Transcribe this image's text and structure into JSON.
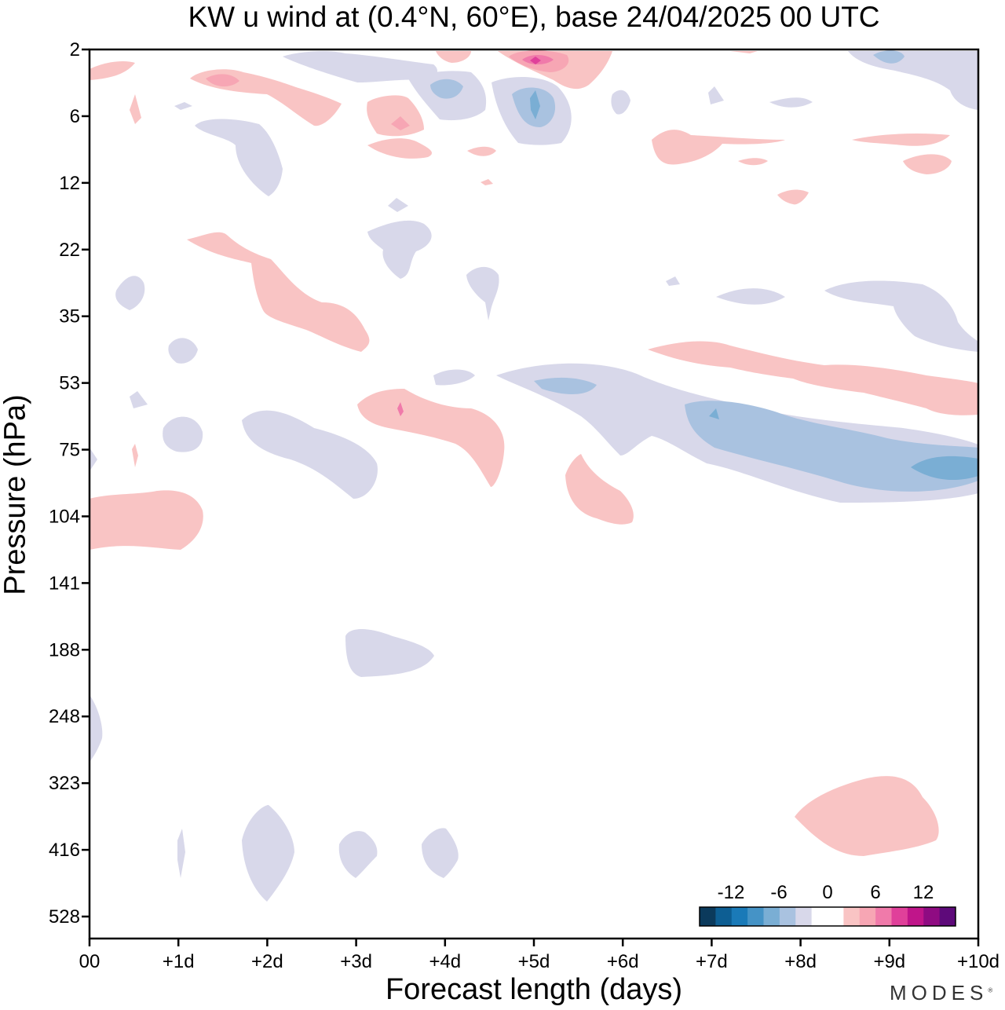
{
  "chart_data": {
    "type": "heatmap",
    "title": "KW u wind at (0.4°N, 60°E),  base 24/04/2025  00 UTC",
    "xlabel": "Forecast length (days)",
    "ylabel": "Pressure (hPa)",
    "x_ticks": [
      "00",
      "+1d",
      "+2d",
      "+3d",
      "+4d",
      "+5d",
      "+6d",
      "+7d",
      "+8d",
      "+9d",
      "+10d"
    ],
    "y_ticks": [
      "2",
      "6",
      "12",
      "22",
      "35",
      "53",
      "75",
      "104",
      "141",
      "188",
      "248",
      "323",
      "416",
      "528"
    ],
    "xlim": [
      0,
      10
    ],
    "ylim": [
      2,
      528
    ],
    "colorbar": {
      "labels": [
        "-12",
        "-6",
        "0",
        "6",
        "12"
      ],
      "colors": [
        "#0b3a5c",
        "#0d5e93",
        "#1a7ab8",
        "#4593c6",
        "#7aaed4",
        "#a9c2e0",
        "#d8d8ea",
        "#ffffff",
        "#ffffff",
        "#f9c4c4",
        "#f7a6b4",
        "#f07aaa",
        "#e0409a",
        "#c0158a",
        "#8f0b82",
        "#5e0a7a"
      ]
    },
    "contour_regions": [
      {
        "sign": "negative",
        "level": "weak",
        "center_day": 7.5,
        "center_hpa": 70
      },
      {
        "sign": "negative",
        "level": "moderate",
        "center_day": 8.5,
        "center_hpa": 75
      },
      {
        "sign": "negative",
        "level": "strong",
        "center_day": 9.7,
        "center_hpa": 80
      },
      {
        "sign": "positive",
        "level": "weak",
        "center_day": 1.0,
        "center_hpa": 104
      },
      {
        "sign": "positive",
        "level": "weak",
        "center_day": 9.3,
        "center_hpa": 370
      },
      {
        "sign": "positive",
        "level": "moderate",
        "center_day": 5.0,
        "center_hpa": 3
      },
      {
        "sign": "negative",
        "level": "weak",
        "center_day": 3.8,
        "center_hpa": 188
      }
    ]
  },
  "brand": "MODES",
  "brand_mark": "®"
}
